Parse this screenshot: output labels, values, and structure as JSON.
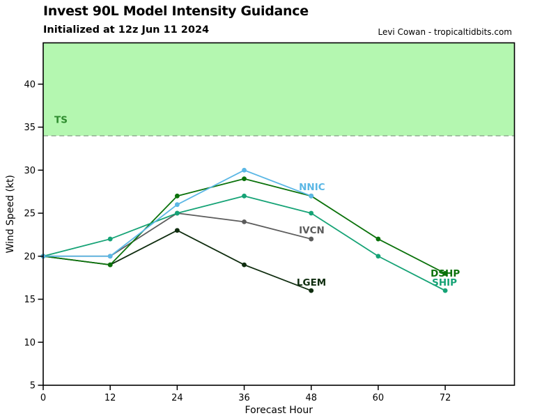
{
  "header": {
    "title": "Invest 90L Model Intensity Guidance",
    "subtitle": "Initialized at 12z Jun 11 2024",
    "credit": "Levi Cowan - tropicaltidbits.com"
  },
  "chart_data": {
    "type": "line",
    "title": "Invest 90L Model Intensity Guidance",
    "subtitle": "Initialized at 12z Jun 11 2024",
    "credit": "Levi Cowan - tropicaltidbits.com",
    "xlabel": "Forecast Hour",
    "ylabel": "Wind Speed (kt)",
    "xlim": [
      0,
      84.4
    ],
    "ylim": [
      5,
      44.8
    ],
    "x_ticks": [
      0,
      12,
      24,
      36,
      48,
      60,
      72
    ],
    "y_ticks": [
      5,
      10,
      15,
      20,
      25,
      30,
      35,
      40
    ],
    "grid": false,
    "legend_position": "inline-labels",
    "x": [
      0,
      12,
      24,
      36,
      48,
      60,
      72
    ],
    "series": [
      {
        "name": "IVCN",
        "color": "#5c5c5c",
        "values": [
          20,
          20,
          25,
          24,
          22,
          null,
          null
        ],
        "label_x": 45.8,
        "label_y": 22.66
      },
      {
        "name": "LGEM",
        "color": "#0f2d0f",
        "values": [
          20,
          19,
          23,
          19,
          16,
          null,
          null
        ],
        "label_x": 45.4,
        "label_y": 16.58
      },
      {
        "name": "DSHP",
        "color": "#0b720b",
        "values": [
          20,
          19,
          27,
          29,
          27,
          22,
          18
        ],
        "label_x": 69.38,
        "label_y": 17.64
      },
      {
        "name": "SHIP",
        "color": "#16a376",
        "values": [
          20,
          22,
          25,
          27,
          25,
          20,
          16
        ],
        "label_x": 69.63,
        "label_y": 16.58
      },
      {
        "name": "NNIC",
        "color": "#5bb7e5",
        "values": [
          20,
          20,
          26,
          30,
          27,
          null,
          null
        ],
        "label_x": 45.8,
        "label_y": 27.68
      }
    ],
    "threshold": {
      "label": "TS",
      "value": 34,
      "band_color": "#b4f7b0",
      "line_color": "#8fae8f",
      "label_color": "#2d8b2d",
      "label_x": 2.0,
      "label_y": 35.5
    }
  }
}
